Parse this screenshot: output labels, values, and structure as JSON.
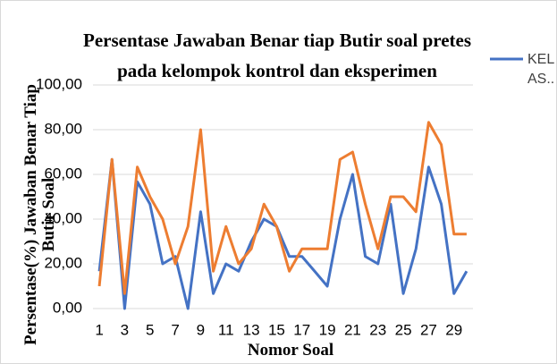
{
  "chart_data": {
    "type": "line",
    "title": "Persentase Jawaban Benar tiap Butir soal pretes pada kelompok kontrol dan eksperimen",
    "y_label": "Persentase(%) Jawaban Benar Tiap Butir Soal",
    "x_label": "Nomor Soal",
    "categories": [
      "1",
      null,
      "3",
      null,
      "5",
      null,
      "7",
      null,
      "9",
      null,
      "11",
      null,
      "13",
      null,
      "15",
      null,
      "17",
      null,
      "19",
      null,
      "21",
      null,
      "23",
      null,
      "25",
      null,
      "27",
      null,
      "29",
      null
    ],
    "series": [
      {
        "name": "KEL AS..",
        "color": "#4472c4",
        "values": [
          16.7,
          66.7,
          0,
          56.7,
          46.7,
          20,
          23.3,
          0,
          43.3,
          6.7,
          20,
          16.7,
          30,
          40,
          36.7,
          23.3,
          23.3,
          16.7,
          10,
          40,
          60,
          23.3,
          20,
          46.7,
          6.7,
          26.7,
          63.3,
          46.7,
          6.7,
          16.7
        ]
      },
      {
        "color": "#ed7d31",
        "values": [
          10,
          66.7,
          6.7,
          63.3,
          50,
          40,
          20,
          36.7,
          80,
          16.7,
          36.7,
          20,
          26.7,
          46.7,
          36.7,
          16.7,
          26.7,
          26.7,
          26.7,
          66.7,
          70,
          46.7,
          26.7,
          50,
          50,
          43.3,
          83.3,
          73.3,
          33.3,
          33.3
        ]
      }
    ],
    "ylim": [
      0,
      100
    ],
    "yticks": [
      {
        "value": 0,
        "label": "0,00"
      },
      {
        "value": 20,
        "label": "20,00"
      },
      {
        "value": 40,
        "label": "40,00"
      },
      {
        "value": 60,
        "label": "60,00"
      },
      {
        "value": 80,
        "label": "80,00"
      },
      {
        "value": 100,
        "label": "100,00"
      }
    ],
    "grid": true
  }
}
